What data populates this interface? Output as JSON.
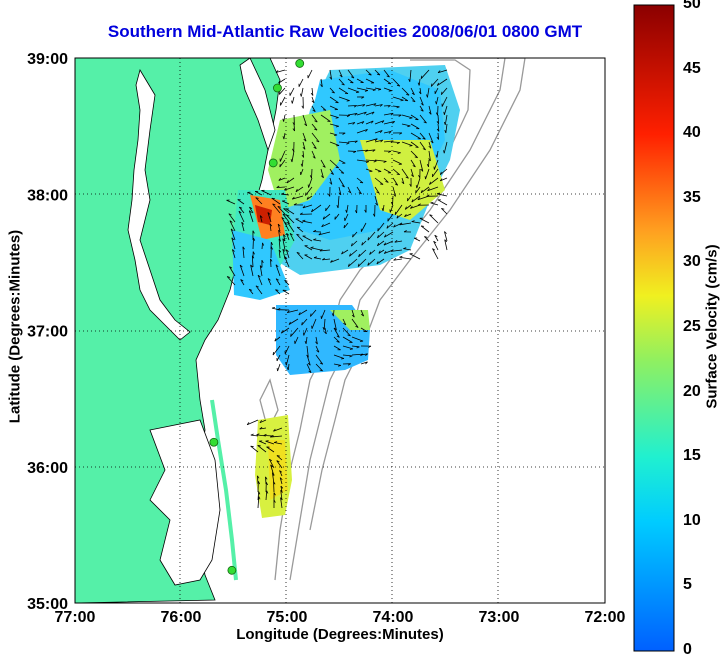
{
  "title": "Southern Mid-Atlantic Raw Velocities 2008/06/01 0800 GMT",
  "xlabel": "Longitude (Degrees:Minutes)",
  "ylabel": "Latitude (Degrees:Minutes)",
  "colorbar": {
    "label": "Surface Velocity (cm/s)",
    "ticks": [
      "0",
      "5",
      "10",
      "15",
      "20",
      "25",
      "30",
      "35",
      "40",
      "45",
      "50"
    ],
    "range": [
      0,
      50
    ]
  },
  "axes": {
    "lon_ticks": [
      "77:00",
      "76:00",
      "75:00",
      "74:00",
      "73:00",
      "72:00"
    ],
    "lat_ticks": [
      "39:00",
      "38:00",
      "37:00",
      "36:00",
      "35:00"
    ],
    "lon_range": [
      -77,
      -72
    ],
    "lat_range": [
      35,
      39
    ],
    "grid": true
  },
  "colors": {
    "land": "#55f0a8",
    "water": "#ffffff",
    "coastline": "#000000",
    "bathymetry": "#999999",
    "title": "#0000dd",
    "station": "#33dd33"
  },
  "stations": [
    {
      "lon": -74.88,
      "lat": 38.96
    },
    {
      "lon": -75.09,
      "lat": 38.78
    },
    {
      "lon": -75.13,
      "lat": 38.23
    },
    {
      "lon": -75.69,
      "lat": 36.18
    },
    {
      "lon": -75.52,
      "lat": 35.24
    }
  ]
}
